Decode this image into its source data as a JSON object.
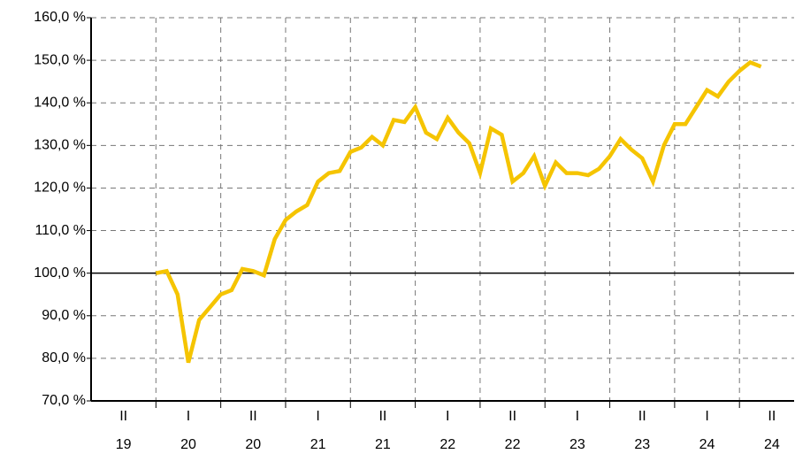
{
  "chart_data": {
    "type": "line",
    "periods": [
      {
        "half": "II",
        "year": "19"
      },
      {
        "half": "I",
        "year": "20"
      },
      {
        "half": "II",
        "year": "20"
      },
      {
        "half": "I",
        "year": "21"
      },
      {
        "half": "II",
        "year": "21"
      },
      {
        "half": "I",
        "year": "22"
      },
      {
        "half": "II",
        "year": "22"
      },
      {
        "half": "I",
        "year": "23"
      },
      {
        "half": "II",
        "year": "23"
      },
      {
        "half": "I",
        "year": "24"
      },
      {
        "half": "II",
        "year": "24"
      }
    ],
    "series": [
      {
        "color": "#f5c400",
        "values": [
          null,
          null,
          null,
          null,
          null,
          null,
          100,
          100.5,
          95,
          79,
          89,
          92,
          95,
          96,
          101,
          100.5,
          99.5,
          108,
          112.5,
          114.5,
          116,
          121.5,
          123.5,
          124,
          128.5,
          129.5,
          132,
          130,
          136,
          135.5,
          139,
          133,
          131.5,
          136.5,
          133,
          130.5,
          123.5,
          134,
          132.5,
          121.5,
          123.5,
          127.5,
          120.5,
          126,
          123.5,
          123.5,
          123,
          124.5,
          127.5,
          131.5,
          129,
          127,
          121.5,
          130,
          135,
          135,
          139,
          143,
          141.5,
          145,
          147.5,
          149.5,
          148.5,
          null,
          null,
          null
        ]
      }
    ],
    "ylim": [
      70,
      160
    ],
    "yticks": [
      {
        "value": 70,
        "label": "70,0 %"
      },
      {
        "value": 80,
        "label": "80,0 %"
      },
      {
        "value": 90,
        "label": "90,0 %"
      },
      {
        "value": 100,
        "label": "100,0 %"
      },
      {
        "value": 110,
        "label": "110,0 %"
      },
      {
        "value": 120,
        "label": "120,0 %"
      },
      {
        "value": 130,
        "label": "130,0 %"
      },
      {
        "value": 140,
        "label": "140,0 %"
      },
      {
        "value": 150,
        "label": "150,0 %"
      },
      {
        "value": 160,
        "label": "160,0 %"
      }
    ],
    "reference_line": 100,
    "grid": true
  }
}
